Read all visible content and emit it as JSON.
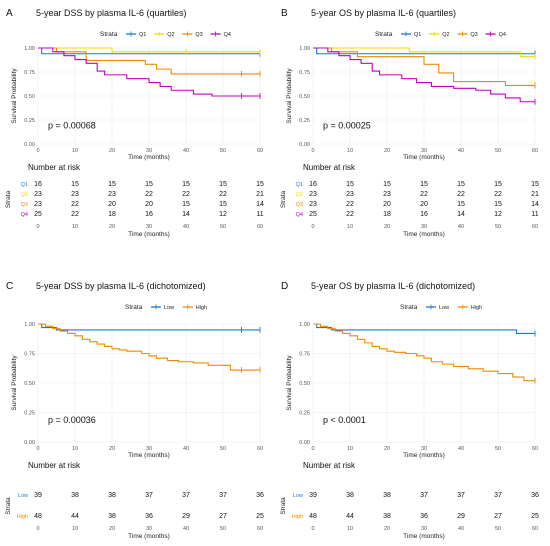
{
  "figure": {
    "panels": [
      {
        "letter": "A",
        "title": "5-year DSS by plasma IL-6 (quartiles)"
      },
      {
        "letter": "B",
        "title": "5-year OS by plasma IL-6 (quartiles)"
      },
      {
        "letter": "C",
        "title": "5-year DSS by plasma IL-6 (dichotomized)"
      },
      {
        "letter": "D",
        "title": "5-year OS by plasma IL-6 (dichotomized)"
      }
    ]
  },
  "chart_data": [
    {
      "type": "line",
      "panel": "A",
      "title": "5-year DSS by plasma IL-6 (quartiles)",
      "xlabel": "Time (months)",
      "ylabel": "Survival Probability",
      "xlim": [
        0,
        60
      ],
      "ylim": [
        0,
        1
      ],
      "xticks": [
        0,
        10,
        20,
        30,
        40,
        50,
        60
      ],
      "yticks": [
        "0.00",
        "0.25",
        "0.50",
        "0.75",
        "1.00"
      ],
      "legend_title": "Strata",
      "legend_position": "top",
      "annotation": "p = 0.00068",
      "series": [
        {
          "name": "Q1",
          "color": "#1f77d0",
          "x": [
            0,
            1,
            60
          ],
          "y": [
            1.0,
            0.94,
            0.94
          ],
          "censor": [
            [
              60,
              0.94
            ]
          ]
        },
        {
          "name": "Q2",
          "color": "#f5d800",
          "x": [
            0,
            20,
            60
          ],
          "y": [
            1.0,
            0.96,
            0.96
          ],
          "censor": [
            [
              40,
              0.96
            ],
            [
              60,
              0.96
            ]
          ]
        },
        {
          "name": "Q3",
          "color": "#f08a00",
          "x": [
            0,
            5,
            13,
            22,
            29,
            32,
            36,
            60
          ],
          "y": [
            1.0,
            0.96,
            0.87,
            0.87,
            0.83,
            0.78,
            0.73,
            0.73
          ],
          "censor": [
            [
              55,
              0.73
            ],
            [
              60,
              0.73
            ]
          ]
        },
        {
          "name": "Q4",
          "color": "#c000c0",
          "x": [
            0,
            4,
            7,
            10,
            13,
            16,
            18,
            24,
            30,
            33,
            36,
            42,
            47,
            60
          ],
          "y": [
            1.0,
            0.96,
            0.92,
            0.88,
            0.84,
            0.76,
            0.72,
            0.68,
            0.64,
            0.6,
            0.56,
            0.52,
            0.5,
            0.5
          ],
          "censor": [
            [
              55,
              0.5
            ],
            [
              60,
              0.5
            ]
          ]
        }
      ],
      "risk_table": {
        "title": "Number at risk",
        "ylabel": "Strata",
        "times": [
          0,
          10,
          20,
          30,
          40,
          50,
          60
        ],
        "rows": [
          {
            "name": "Q1",
            "color": "#1f77d0",
            "values": [
              16,
              15,
              15,
              15,
              15,
              15,
              15
            ]
          },
          {
            "name": "Q2",
            "color": "#f5d800",
            "values": [
              23,
              23,
              23,
              22,
              22,
              22,
              21
            ]
          },
          {
            "name": "Q3",
            "color": "#f08a00",
            "values": [
              23,
              22,
              20,
              20,
              15,
              15,
              14
            ]
          },
          {
            "name": "Q4",
            "color": "#c000c0",
            "values": [
              25,
              22,
              18,
              16,
              14,
              12,
              11
            ]
          }
        ],
        "xlabel": "Time (months)"
      }
    },
    {
      "type": "line",
      "panel": "B",
      "title": "5-year OS by plasma IL-6 (quartiles)",
      "xlabel": "Time (months)",
      "ylabel": "Survival Probability",
      "xlim": [
        0,
        60
      ],
      "ylim": [
        0,
        1
      ],
      "xticks": [
        0,
        10,
        20,
        30,
        40,
        50,
        60
      ],
      "yticks": [
        "0.00",
        "0.25",
        "0.50",
        "0.75",
        "1.00"
      ],
      "legend_title": "Strata",
      "legend_position": "top",
      "annotation": "p = 0.00025",
      "series": [
        {
          "name": "Q1",
          "color": "#1f77d0",
          "x": [
            0,
            1,
            60
          ],
          "y": [
            1.0,
            0.94,
            0.94
          ],
          "censor": [
            [
              60,
              0.94
            ]
          ]
        },
        {
          "name": "Q2",
          "color": "#f5d800",
          "x": [
            0,
            26,
            56,
            60
          ],
          "y": [
            1.0,
            0.96,
            0.91,
            0.91
          ],
          "censor": [
            [
              60,
              0.91
            ]
          ]
        },
        {
          "name": "Q3",
          "color": "#f08a00",
          "x": [
            0,
            5,
            12,
            30,
            34,
            38,
            52,
            60
          ],
          "y": [
            1.0,
            0.96,
            0.91,
            0.83,
            0.74,
            0.65,
            0.61,
            0.61
          ],
          "censor": [
            [
              60,
              0.61
            ]
          ]
        },
        {
          "name": "Q4",
          "color": "#c000c0",
          "x": [
            0,
            4,
            7,
            10,
            13,
            16,
            18,
            24,
            28,
            32,
            38,
            44,
            48,
            52,
            56,
            60
          ],
          "y": [
            1.0,
            0.96,
            0.92,
            0.88,
            0.84,
            0.76,
            0.72,
            0.68,
            0.64,
            0.6,
            0.58,
            0.56,
            0.52,
            0.48,
            0.44,
            0.44
          ],
          "censor": [
            [
              60,
              0.44
            ]
          ]
        }
      ],
      "risk_table": {
        "title": "Number at risk",
        "ylabel": "Strata",
        "times": [
          0,
          10,
          20,
          30,
          40,
          50,
          60
        ],
        "rows": [
          {
            "name": "Q1",
            "color": "#1f77d0",
            "values": [
              16,
              15,
              15,
              15,
              15,
              15,
              15
            ]
          },
          {
            "name": "Q2",
            "color": "#f5d800",
            "values": [
              23,
              23,
              23,
              22,
              22,
              22,
              21
            ]
          },
          {
            "name": "Q3",
            "color": "#f08a00",
            "values": [
              23,
              22,
              20,
              20,
              15,
              15,
              14
            ]
          },
          {
            "name": "Q4",
            "color": "#c000c0",
            "values": [
              25,
              22,
              18,
              16,
              14,
              12,
              11
            ]
          }
        ],
        "xlabel": "Time (months)"
      }
    },
    {
      "type": "line",
      "panel": "C",
      "title": "5-year DSS by plasma IL-6 (dichotomized)",
      "xlabel": "Time (months)",
      "ylabel": "Survival Probability",
      "xlim": [
        0,
        60
      ],
      "ylim": [
        0,
        1
      ],
      "xticks": [
        0,
        10,
        20,
        30,
        40,
        50,
        60
      ],
      "yticks": [
        "0.00",
        "0.25",
        "0.50",
        "0.75",
        "1.00"
      ],
      "legend_title": "Strata",
      "legend_position": "top",
      "annotation": "p = 0.00036",
      "series": [
        {
          "name": "Low",
          "color": "#1f77d0",
          "x": [
            0,
            1,
            5,
            60
          ],
          "y": [
            1.0,
            0.97,
            0.95,
            0.95
          ],
          "censor": [
            [
              55,
              0.95
            ],
            [
              60,
              0.95
            ]
          ]
        },
        {
          "name": "High",
          "color": "#f08a00",
          "x": [
            0,
            2,
            4,
            6,
            8,
            10,
            12,
            14,
            16,
            18,
            20,
            22,
            24,
            28,
            30,
            32,
            35,
            38,
            42,
            46,
            52,
            60
          ],
          "y": [
            1.0,
            0.98,
            0.96,
            0.94,
            0.92,
            0.9,
            0.87,
            0.85,
            0.83,
            0.81,
            0.79,
            0.78,
            0.77,
            0.75,
            0.73,
            0.71,
            0.69,
            0.68,
            0.67,
            0.65,
            0.61,
            0.61
          ],
          "censor": [
            [
              55,
              0.61
            ],
            [
              60,
              0.61
            ]
          ]
        }
      ],
      "risk_table": {
        "title": "Number at risk",
        "ylabel": "Strata",
        "times": [
          0,
          10,
          20,
          30,
          40,
          50,
          60
        ],
        "rows": [
          {
            "name": "Low",
            "color": "#1f77d0",
            "values": [
              39,
              38,
              38,
              37,
              37,
              37,
              36
            ]
          },
          {
            "name": "High",
            "color": "#f08a00",
            "values": [
              48,
              44,
              38,
              36,
              29,
              27,
              25
            ]
          }
        ],
        "xlabel": "Time (months)"
      }
    },
    {
      "type": "line",
      "panel": "D",
      "title": "5-year OS by plasma IL-6 (dichotomized)",
      "xlabel": "Time (months)",
      "ylabel": "Survival Probability",
      "xlim": [
        0,
        60
      ],
      "ylim": [
        0,
        1
      ],
      "xticks": [
        0,
        10,
        20,
        30,
        40,
        50,
        60
      ],
      "yticks": [
        "0.00",
        "0.25",
        "0.50",
        "0.75",
        "1.00"
      ],
      "legend_title": "Strata",
      "legend_position": "top",
      "annotation": "p < 0.0001",
      "series": [
        {
          "name": "Low",
          "color": "#1f77d0",
          "x": [
            0,
            1,
            5,
            55,
            60
          ],
          "y": [
            1.0,
            0.97,
            0.95,
            0.92,
            0.92
          ],
          "censor": [
            [
              60,
              0.92
            ]
          ]
        },
        {
          "name": "High",
          "color": "#f08a00",
          "x": [
            0,
            2,
            4,
            6,
            8,
            10,
            12,
            14,
            16,
            18,
            20,
            22,
            25,
            28,
            30,
            32,
            35,
            38,
            42,
            46,
            50,
            54,
            57,
            60
          ],
          "y": [
            1.0,
            0.98,
            0.96,
            0.94,
            0.92,
            0.9,
            0.87,
            0.84,
            0.81,
            0.79,
            0.77,
            0.76,
            0.75,
            0.73,
            0.71,
            0.68,
            0.66,
            0.64,
            0.62,
            0.6,
            0.58,
            0.55,
            0.52,
            0.52
          ],
          "censor": [
            [
              60,
              0.52
            ]
          ]
        }
      ],
      "risk_table": {
        "title": "Number at risk",
        "ylabel": "Strata",
        "times": [
          0,
          10,
          20,
          30,
          40,
          50,
          60
        ],
        "rows": [
          {
            "name": "Low",
            "color": "#1f77d0",
            "values": [
              39,
              38,
              38,
              37,
              37,
              37,
              36
            ]
          },
          {
            "name": "High",
            "color": "#f08a00",
            "values": [
              48,
              44,
              38,
              36,
              29,
              27,
              25
            ]
          }
        ],
        "xlabel": "Time (months)"
      }
    }
  ]
}
